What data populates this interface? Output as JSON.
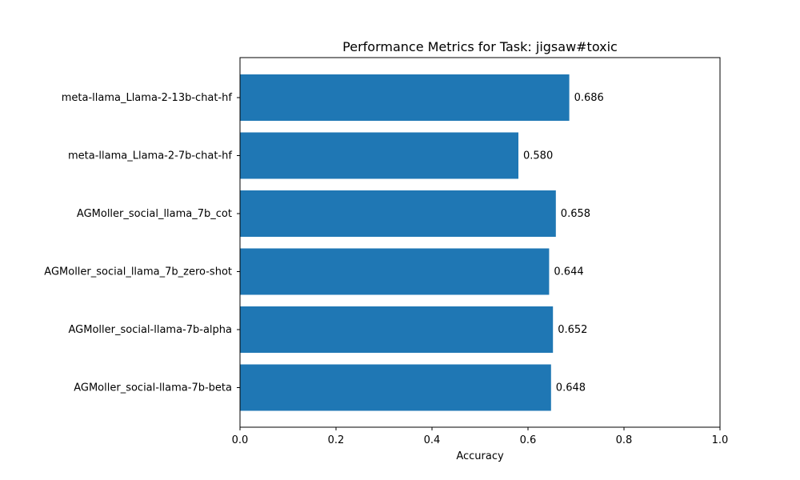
{
  "chart_data": {
    "type": "bar",
    "orientation": "horizontal",
    "title": "Performance Metrics for Task: jigsaw#toxic",
    "xlabel": "Accuracy",
    "ylabel": "",
    "xlim": [
      0.0,
      1.0
    ],
    "xticks": [
      "0.0",
      "0.2",
      "0.4",
      "0.6",
      "0.8",
      "1.0"
    ],
    "grid": false,
    "categories": [
      "meta-llama_Llama-2-13b-chat-hf",
      "meta-llama_Llama-2-7b-chat-hf",
      "AGMoller_social_llama_7b_cot",
      "AGMoller_social_llama_7b_zero-shot",
      "AGMoller_social-llama-7b-alpha",
      "AGMoller_social-llama-7b-beta"
    ],
    "values": [
      0.686,
      0.58,
      0.658,
      0.644,
      0.652,
      0.648
    ],
    "value_labels": [
      "0.686",
      "0.580",
      "0.658",
      "0.644",
      "0.652",
      "0.648"
    ],
    "bar_color": "#1f77b4"
  }
}
